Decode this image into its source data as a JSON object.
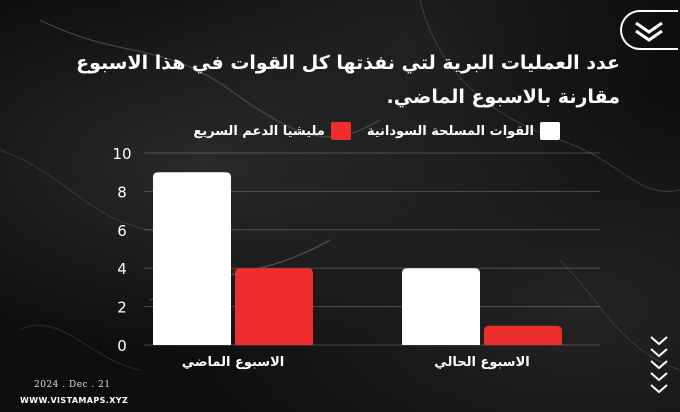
{
  "title": "عدد العمليات البرية لتي نفذتها كل القوات في هذا الاسبوع مقارنة بالاسبوع الماضي.",
  "logo_icon": "brand-chevron-logo-icon",
  "legend": [
    {
      "name": "القوات المسلحة السودانية",
      "color": "#ffffff"
    },
    {
      "name": "مليشيا الدعم السريع",
      "color": "#ee2e2e"
    }
  ],
  "chart_data": {
    "type": "bar",
    "categories": [
      "الاسبوع الماضي",
      "الاسبوع الحالي"
    ],
    "series": [
      {
        "name": "القوات المسلحة السودانية",
        "color": "#ffffff",
        "values": [
          9,
          4
        ]
      },
      {
        "name": "مليشيا الدعم السريع",
        "color": "#ee2e2e",
        "values": [
          4,
          1
        ]
      }
    ],
    "ylim": [
      0,
      10
    ],
    "yticks": [
      0,
      2,
      4,
      6,
      8,
      10
    ],
    "grid": true,
    "legend_position": "top"
  },
  "footer": {
    "date": "2024 . Dec . 21",
    "url": "WWW.VISTAMAPS.XYZ"
  },
  "decor_icon": "down-chevrons-icon"
}
